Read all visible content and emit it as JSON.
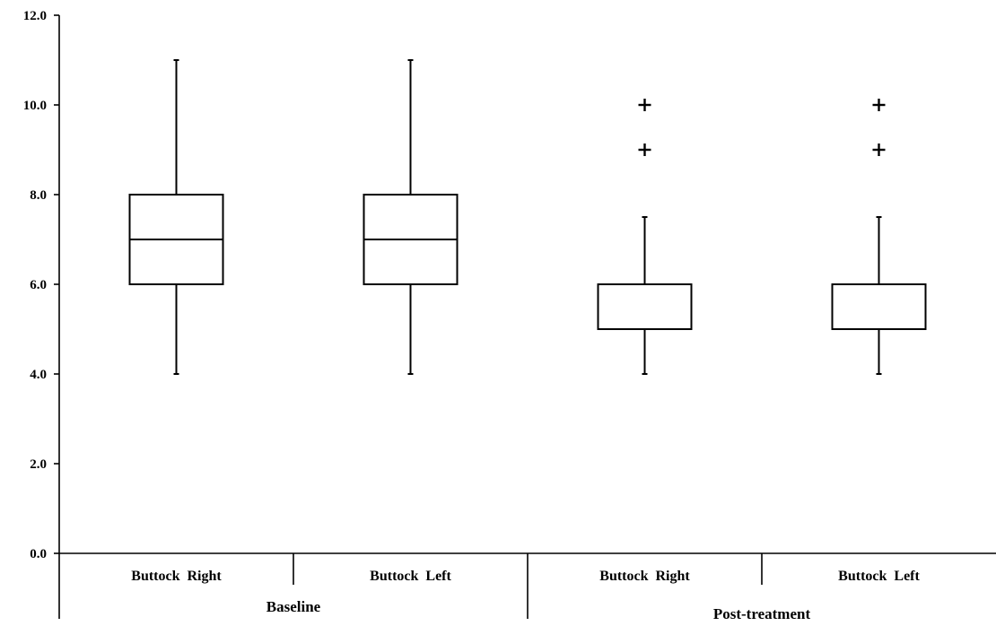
{
  "chart_data": {
    "type": "box",
    "title": "",
    "xlabel": "",
    "ylabel": "",
    "ylim": [
      0,
      12
    ],
    "yticks": [
      0,
      2,
      4,
      6,
      8,
      10,
      12
    ],
    "ytick_labels": [
      "0.0",
      "2.0",
      "4.0",
      "6.0",
      "8.0",
      "10.0",
      "12.0"
    ],
    "grid": false,
    "groups": [
      {
        "label": "Baseline",
        "categories": [
          "Buttock  Right",
          "Buttock  Left"
        ]
      },
      {
        "label": "Post-treatment",
        "categories": [
          "Buttock  Right",
          "Buttock  Left"
        ]
      }
    ],
    "boxes": [
      {
        "category": "Buttock  Right",
        "group": "Baseline",
        "min": 4,
        "q1": 6,
        "median": 7,
        "q3": 8,
        "max": 11,
        "outliers": []
      },
      {
        "category": "Buttock  Left",
        "group": "Baseline",
        "min": 4,
        "q1": 6,
        "median": 7,
        "q3": 8,
        "max": 11,
        "outliers": []
      },
      {
        "category": "Buttock  Right",
        "group": "Post-treatment",
        "min": 4,
        "q1": 5,
        "median": 5,
        "q3": 6,
        "max": 7.5,
        "outliers": [
          9,
          10
        ]
      },
      {
        "category": "Buttock  Left",
        "group": "Post-treatment",
        "min": 4,
        "q1": 5,
        "median": 5,
        "q3": 6,
        "max": 7.5,
        "outliers": [
          9,
          10
        ]
      }
    ]
  }
}
